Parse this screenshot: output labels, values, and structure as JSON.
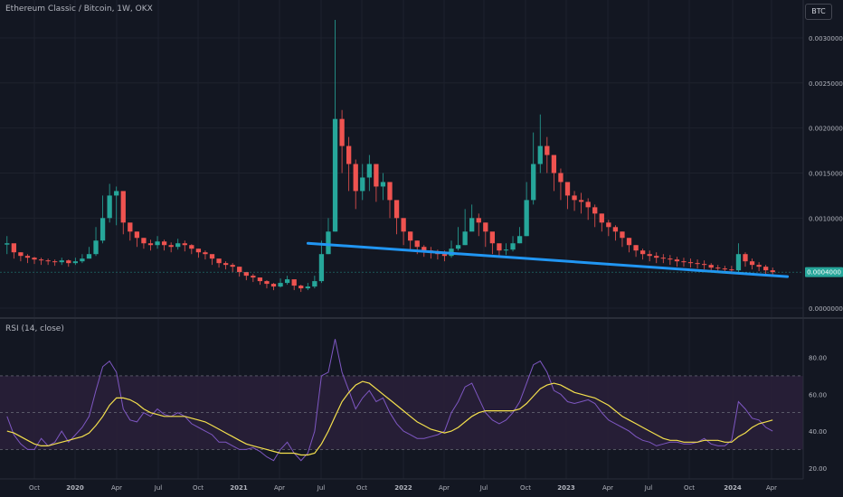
{
  "header": {
    "symbol": "Ethereum Classic / Bitcoin, 1W, OKX",
    "currency_button": "BTC"
  },
  "colors": {
    "background": "#131722",
    "up": "#26a69a",
    "down": "#ef5350",
    "trendline": "#2196f3",
    "rsi_line": "#7e57c2",
    "rsi_ma": "#f4e04d",
    "rsi_band": "#2a2039",
    "axis_text": "#b2b5be",
    "grid": "#1e222d"
  },
  "chart_data": [
    {
      "type": "candlestick",
      "title": "Ethereum Classic / Bitcoin, 1W, OKX",
      "x_ticks": [
        "Oct",
        "2020",
        "Apr",
        "Jul",
        "Oct",
        "2021",
        "Apr",
        "Jul",
        "Oct",
        "2022",
        "Apr",
        "Jul",
        "Oct",
        "2023",
        "Apr",
        "Jul",
        "Oct",
        "2024",
        "Apr"
      ],
      "y_ticks": [
        "0.0030000",
        "0.0025000",
        "0.0020000",
        "0.0015000",
        "0.0010000",
        "0.0000000"
      ],
      "ylim": [
        -5e-05,
        0.0032
      ],
      "last_price_label": "0.0004000",
      "last_price": 0.0004,
      "close_series_start": "2019-08",
      "close_series_end": "2024-04",
      "close_series_interval": "2 weeks",
      "closes": [
        0.00072,
        0.00062,
        0.00058,
        0.00056,
        0.00054,
        0.00053,
        0.00052,
        0.00051,
        0.00053,
        0.0005,
        0.00052,
        0.00055,
        0.0006,
        0.00075,
        0.001,
        0.00125,
        0.0013,
        0.00095,
        0.00085,
        0.00078,
        0.00072,
        0.0007,
        0.00074,
        0.0007,
        0.00068,
        0.00072,
        0.0007,
        0.00066,
        0.00062,
        0.0006,
        0.00055,
        0.0005,
        0.00048,
        0.00046,
        0.0004,
        0.00036,
        0.00034,
        0.0003,
        0.00027,
        0.00024,
        0.00028,
        0.00032,
        0.00025,
        0.00022,
        0.00024,
        0.0003,
        0.0006,
        0.00085,
        0.0021,
        0.0018,
        0.0016,
        0.0013,
        0.00145,
        0.0016,
        0.00135,
        0.0014,
        0.0012,
        0.001,
        0.00085,
        0.00075,
        0.00068,
        0.00064,
        0.00062,
        0.0006,
        0.00058,
        0.00066,
        0.0007,
        0.00085,
        0.001,
        0.00095,
        0.00085,
        0.00072,
        0.00064,
        0.00065,
        0.00072,
        0.0008,
        0.0012,
        0.0016,
        0.0018,
        0.0017,
        0.0015,
        0.0014,
        0.00125,
        0.0012,
        0.00118,
        0.00112,
        0.00105,
        0.00095,
        0.0009,
        0.00085,
        0.00078,
        0.0007,
        0.00064,
        0.0006,
        0.00058,
        0.00056,
        0.00055,
        0.00054,
        0.00052,
        0.00051,
        0.0005,
        0.00049,
        0.00048,
        0.00045,
        0.00044,
        0.00043,
        0.00042,
        0.0006,
        0.00052,
        0.00048,
        0.00046,
        0.00042,
        0.0004
      ],
      "highs": [
        0.0008,
        0.00066,
        0.00062,
        0.0006,
        0.00057,
        0.00056,
        0.00055,
        0.00054,
        0.00056,
        0.00054,
        0.00056,
        0.0006,
        0.00068,
        0.0009,
        0.00125,
        0.00138,
        0.00135,
        0.00105,
        0.00092,
        0.00085,
        0.00078,
        0.00076,
        0.0008,
        0.00076,
        0.00073,
        0.00077,
        0.00075,
        0.00071,
        0.00066,
        0.00064,
        0.00059,
        0.00054,
        0.00052,
        0.0005,
        0.00046,
        0.0004,
        0.00038,
        0.00034,
        0.00031,
        0.00028,
        0.00033,
        0.00036,
        0.0003,
        0.00026,
        0.00028,
        0.00036,
        0.00075,
        0.001,
        0.0032,
        0.0022,
        0.0019,
        0.00165,
        0.0016,
        0.0017,
        0.00155,
        0.0015,
        0.0014,
        0.00115,
        0.001,
        0.00085,
        0.00075,
        0.0007,
        0.00068,
        0.00065,
        0.00064,
        0.00075,
        0.0009,
        0.0011,
        0.00115,
        0.00105,
        0.00095,
        0.0008,
        0.0007,
        0.00072,
        0.0008,
        0.0009,
        0.0014,
        0.00195,
        0.00215,
        0.0019,
        0.0017,
        0.00155,
        0.00138,
        0.0013,
        0.00128,
        0.00122,
        0.00115,
        0.00105,
        0.00098,
        0.00092,
        0.00085,
        0.00078,
        0.0007,
        0.00066,
        0.00064,
        0.00062,
        0.0006,
        0.00059,
        0.00057,
        0.00056,
        0.00055,
        0.00054,
        0.00053,
        0.0005,
        0.00048,
        0.00047,
        0.00047,
        0.00072,
        0.00062,
        0.00055,
        0.00051,
        0.00048,
        0.00045
      ],
      "lows": [
        0.0006,
        0.00055,
        0.00052,
        0.0005,
        0.00049,
        0.00048,
        0.00048,
        0.00047,
        0.00048,
        0.00046,
        0.00048,
        0.0005,
        0.00055,
        0.00058,
        0.00072,
        0.00095,
        0.00092,
        0.00082,
        0.00075,
        0.00068,
        0.00066,
        0.00064,
        0.00066,
        0.00064,
        0.00062,
        0.00065,
        0.00063,
        0.0006,
        0.00056,
        0.00054,
        0.00048,
        0.00045,
        0.00043,
        0.0004,
        0.00035,
        0.00031,
        0.00029,
        0.00026,
        0.00022,
        0.0002,
        0.00023,
        0.00026,
        0.0002,
        0.00018,
        0.0002,
        0.00022,
        0.00028,
        0.0006,
        0.00085,
        0.0015,
        0.0013,
        0.0011,
        0.0012,
        0.0013,
        0.00118,
        0.0012,
        0.001,
        0.00082,
        0.0007,
        0.00065,
        0.0006,
        0.00057,
        0.00055,
        0.00054,
        0.00052,
        0.00056,
        0.00064,
        0.0007,
        0.00088,
        0.0008,
        0.00068,
        0.0006,
        0.00058,
        0.00059,
        0.00063,
        0.00072,
        0.0008,
        0.00115,
        0.0015,
        0.0015,
        0.0013,
        0.0012,
        0.0011,
        0.00108,
        0.00105,
        0.00098,
        0.0009,
        0.00085,
        0.0008,
        0.00075,
        0.00068,
        0.00062,
        0.00057,
        0.00054,
        0.00052,
        0.0005,
        0.0005,
        0.00048,
        0.00046,
        0.00046,
        0.00045,
        0.00044,
        0.00043,
        0.00041,
        0.0004,
        0.00039,
        0.00038,
        0.0004,
        0.00046,
        0.00043,
        0.00041,
        0.00038,
        0.00037
      ],
      "trendline": {
        "start": {
          "date": "2021-06",
          "value": 0.00072
        },
        "end": {
          "date": "2024-05",
          "value": 0.00035
        }
      }
    },
    {
      "type": "line",
      "title": "RSI (14, close)",
      "y_ticks": [
        "80.00",
        "60.00",
        "40.00",
        "20.00"
      ],
      "ylim": [
        15,
        95
      ],
      "bands": {
        "upper": 70,
        "middle": 50,
        "lower": 30
      },
      "series": [
        {
          "name": "RSI",
          "values": [
            48,
            38,
            33,
            30,
            30,
            36,
            32,
            34,
            40,
            34,
            38,
            42,
            48,
            62,
            75,
            78,
            72,
            52,
            46,
            45,
            50,
            48,
            52,
            49,
            48,
            50,
            48,
            44,
            42,
            40,
            38,
            34,
            34,
            32,
            30,
            30,
            31,
            29,
            26,
            24,
            30,
            34,
            28,
            24,
            28,
            40,
            70,
            72,
            90,
            72,
            62,
            52,
            58,
            62,
            56,
            58,
            50,
            44,
            40,
            38,
            36,
            36,
            37,
            38,
            40,
            50,
            56,
            64,
            66,
            58,
            50,
            46,
            44,
            46,
            50,
            56,
            66,
            76,
            78,
            72,
            62,
            60,
            56,
            55,
            56,
            57,
            55,
            50,
            46,
            44,
            42,
            40,
            37,
            35,
            34,
            32,
            33,
            34,
            34,
            33,
            33,
            34,
            36,
            33,
            32,
            32,
            35,
            56,
            52,
            47,
            46,
            42,
            40
          ]
        },
        {
          "name": "RSI-based MA",
          "values": [
            40,
            39,
            37,
            35,
            33,
            32,
            32,
            33,
            34,
            35,
            36,
            37,
            39,
            43,
            48,
            54,
            58,
            58,
            57,
            55,
            52,
            50,
            49,
            48,
            48,
            48,
            48,
            47,
            46,
            45,
            43,
            41,
            39,
            37,
            35,
            33,
            32,
            31,
            30,
            29,
            28,
            28,
            28,
            27,
            27,
            28,
            33,
            40,
            48,
            56,
            61,
            65,
            67,
            66,
            63,
            60,
            57,
            54,
            51,
            48,
            45,
            43,
            41,
            40,
            39,
            40,
            42,
            45,
            48,
            50,
            51,
            51,
            51,
            51,
            51,
            52,
            55,
            59,
            63,
            65,
            66,
            65,
            63,
            61,
            60,
            59,
            58,
            56,
            54,
            51,
            48,
            46,
            44,
            42,
            40,
            38,
            36,
            35,
            35,
            34,
            34,
            34,
            35,
            35,
            35,
            34,
            34,
            37,
            39,
            42,
            44,
            45,
            46
          ]
        }
      ]
    }
  ]
}
